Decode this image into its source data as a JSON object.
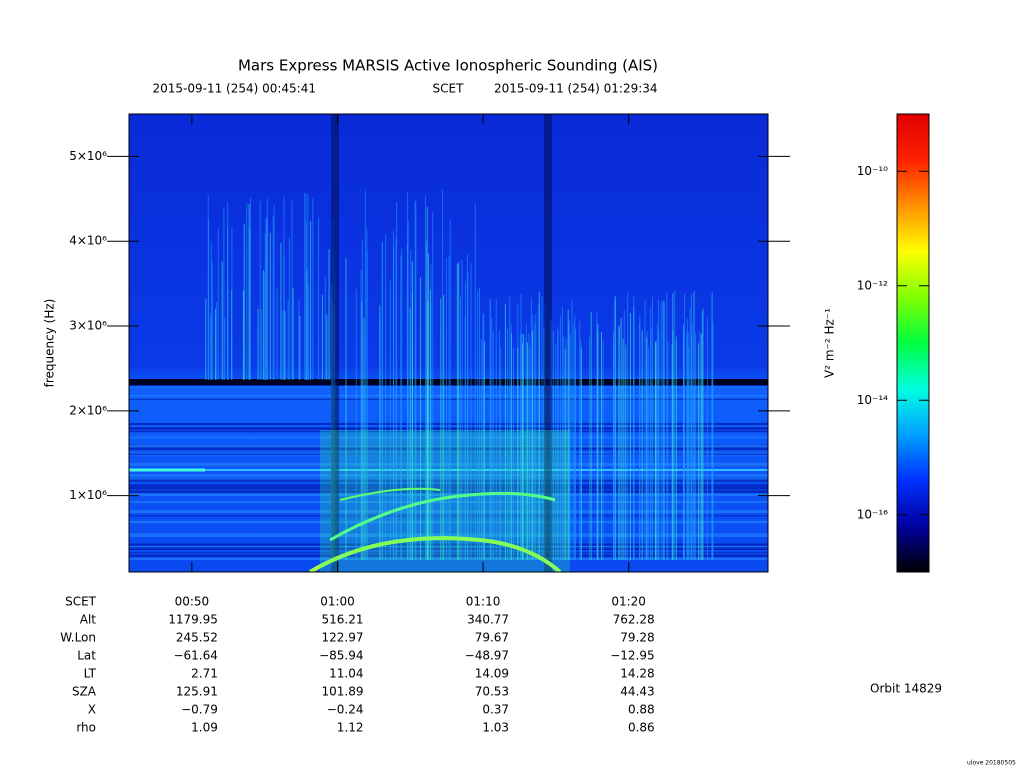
{
  "chart_data": {
    "type": "spectrogram",
    "title": "Mars Express MARSIS Active Ionospheric Sounding (AIS)",
    "subtitle": [
      "2015-09-11 (254) 00:45:41",
      "SCET",
      "2015-09-11 (254) 01:29:34"
    ],
    "ylabel": "frequency (Hz)",
    "ylim": [
      100000,
      5500000
    ],
    "yticks": [
      {
        "value": 1000000,
        "label": "1×10⁶"
      },
      {
        "value": 2000000,
        "label": "2×10⁶"
      },
      {
        "value": 3000000,
        "label": "3×10⁶"
      },
      {
        "value": 4000000,
        "label": "4×10⁶"
      },
      {
        "value": 5000000,
        "label": "5×10⁶"
      }
    ],
    "xlim": [
      45.68,
      89.57
    ],
    "xticks": [
      {
        "value": 50,
        "label": "00:50"
      },
      {
        "value": 60,
        "label": "01:00"
      },
      {
        "value": 70,
        "label": "01:10"
      },
      {
        "value": 80,
        "label": "01:20"
      }
    ],
    "colorbar": {
      "label": "V² m⁻² Hz⁻¹",
      "log": true,
      "lim": [
        1e-17,
        1e-09
      ],
      "ticks": [
        {
          "value": 1e-10,
          "label": "10⁻¹⁰"
        },
        {
          "value": 1e-12,
          "label": "10⁻¹²"
        },
        {
          "value": 1e-14,
          "label": "10⁻¹⁴"
        },
        {
          "value": 1e-16,
          "label": "10⁻¹⁶"
        }
      ],
      "colors": [
        "#000000",
        "#0000a0",
        "#0030ff",
        "#00a0ff",
        "#00ffe0",
        "#00ff40",
        "#80ff00",
        "#ffff00",
        "#ff9000",
        "#ff2000",
        "#e00000"
      ]
    },
    "ephemeris": {
      "labels": [
        "SCET",
        "Alt",
        "W.Lon",
        "Lat",
        "LT",
        "SZA",
        "X",
        "rho"
      ],
      "rows": [
        [
          "1179.95",
          "516.21",
          "340.77",
          "762.28"
        ],
        [
          "245.52",
          "122.97",
          "79.67",
          "79.28"
        ],
        [
          "−61.64",
          "−85.94",
          "−48.97",
          "−12.95"
        ],
        [
          "2.71",
          "11.04",
          "14.09",
          "14.28"
        ],
        [
          "125.91",
          "101.89",
          "70.53",
          "44.43"
        ],
        [
          "−0.79",
          "−0.24",
          "0.37",
          "0.88"
        ],
        [
          "1.09",
          "1.12",
          "1.03",
          "0.86"
        ]
      ]
    },
    "orbit": "Orbit 14829",
    "footer": "ulove 20180505"
  }
}
